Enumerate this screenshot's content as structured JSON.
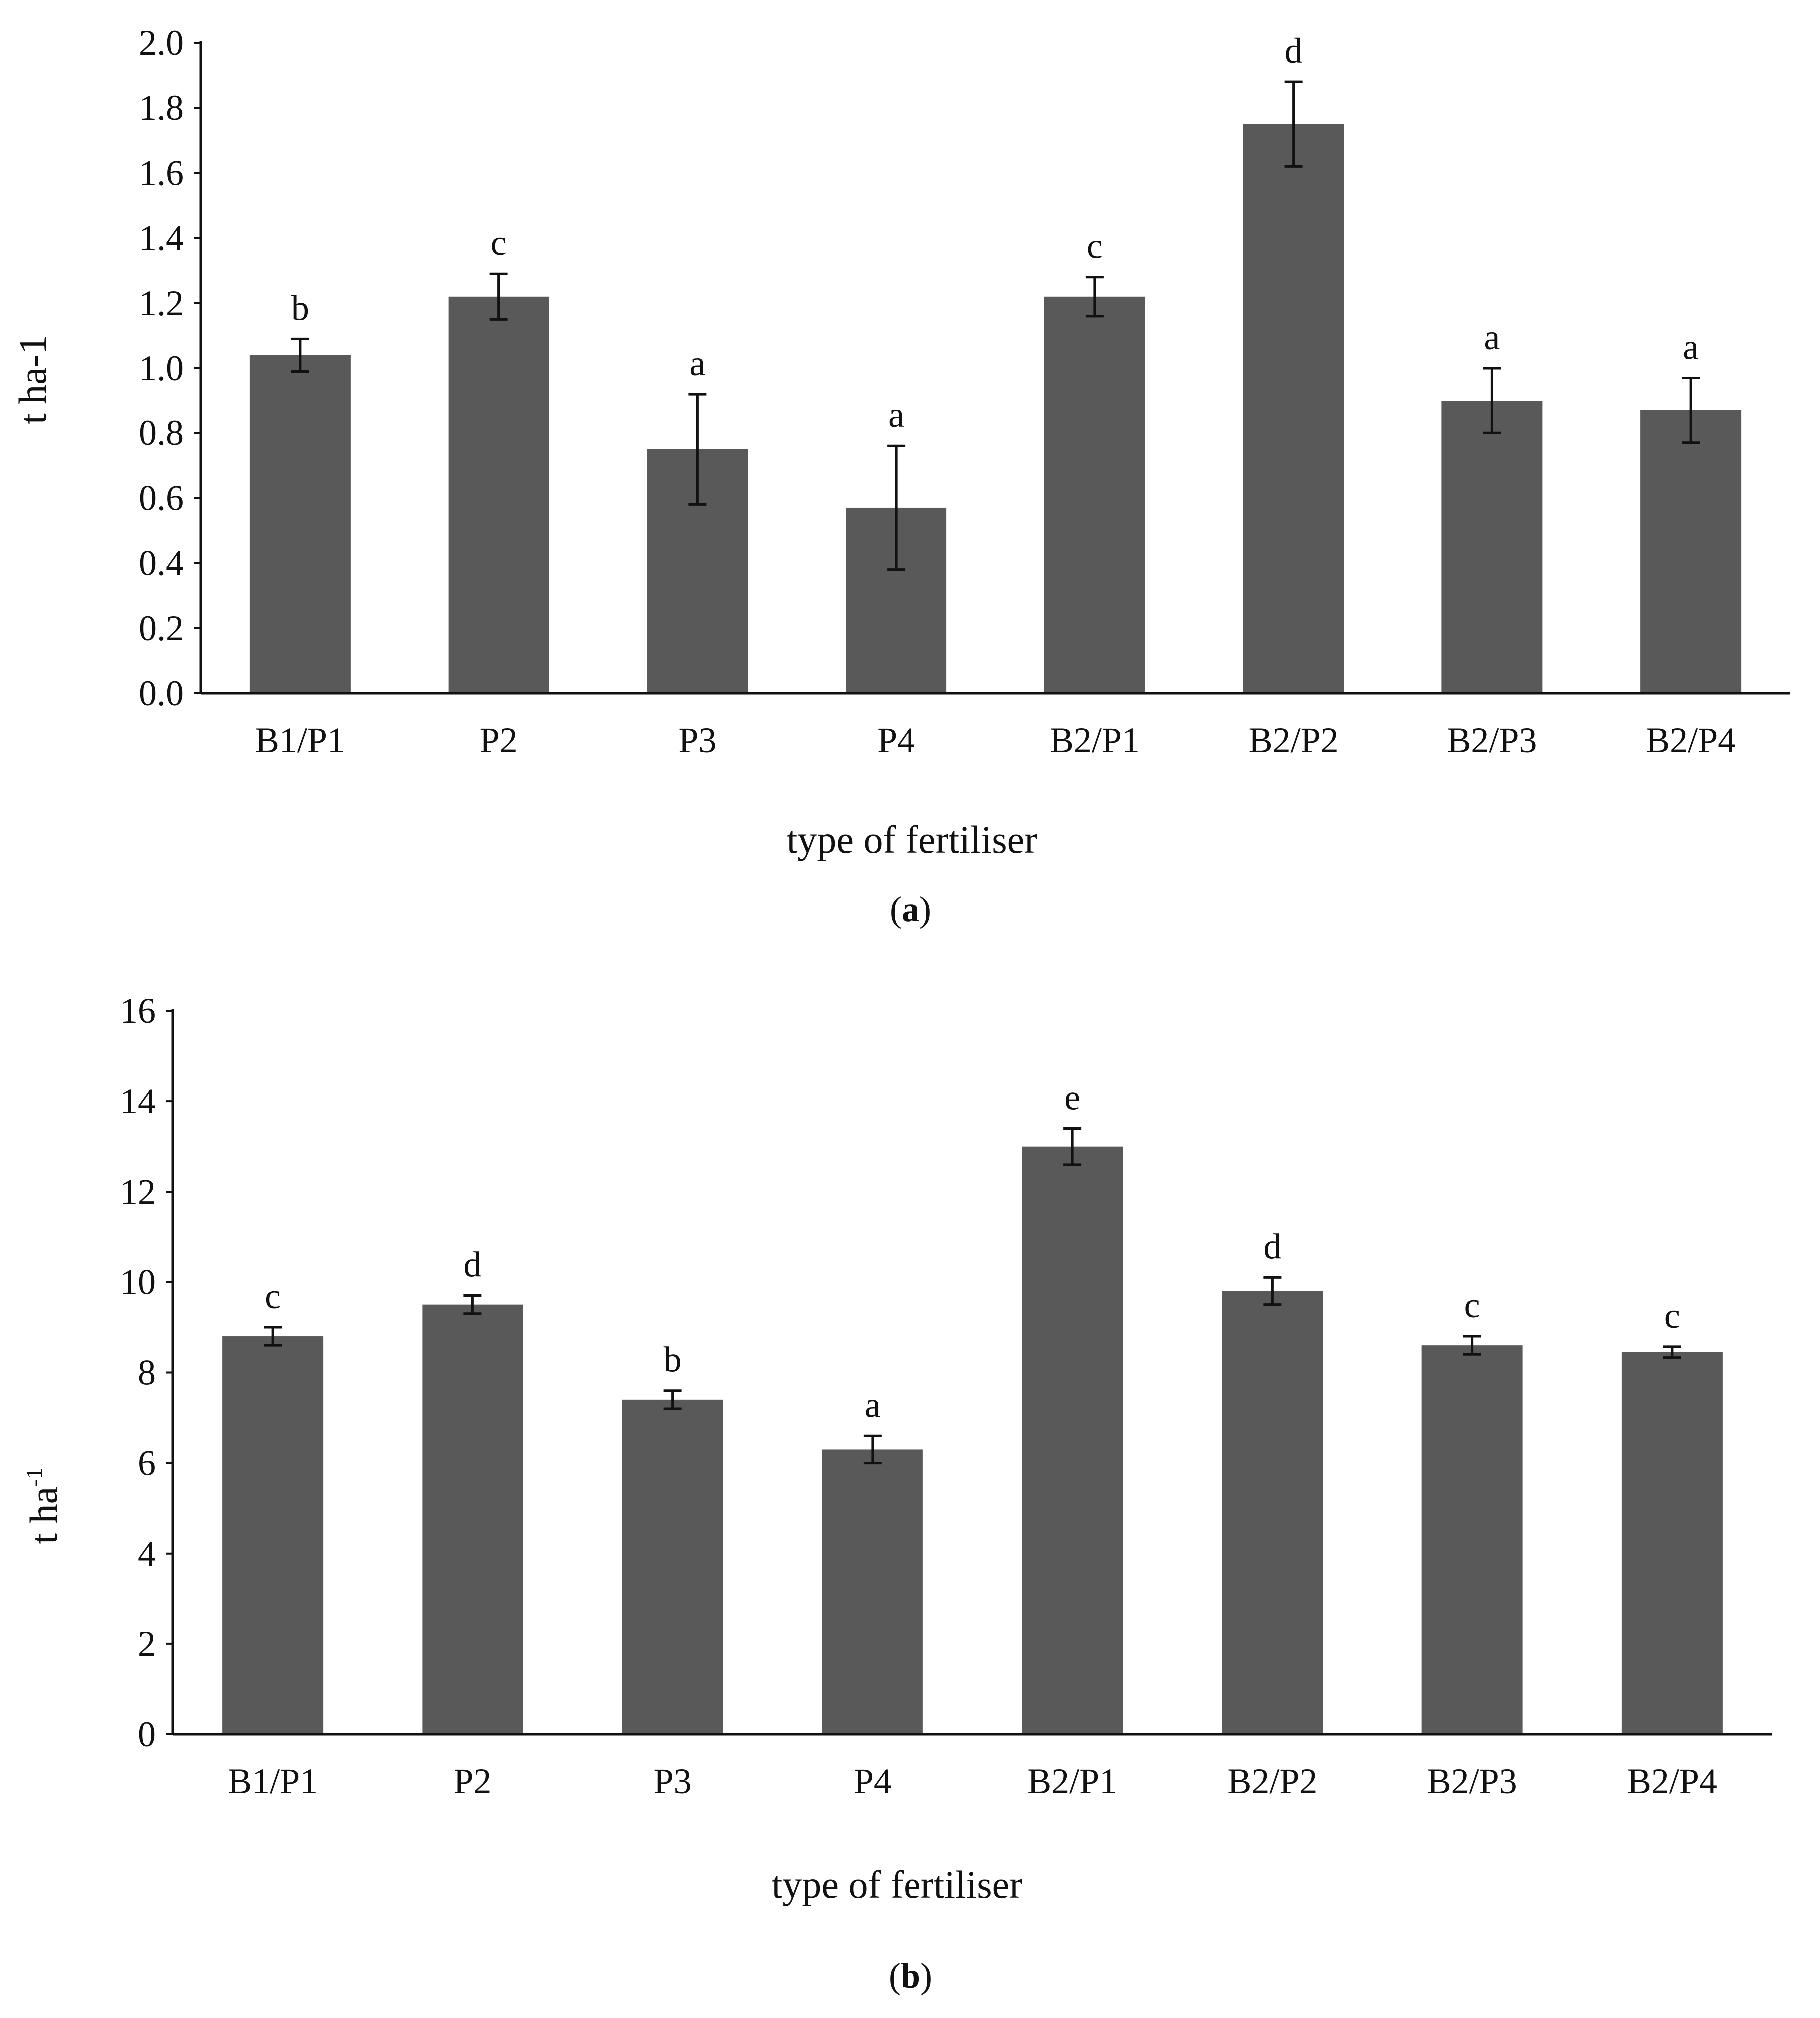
{
  "colors": {
    "bar": "#595959",
    "axis": "#111111",
    "error": "#111111"
  },
  "chart_data": [
    {
      "type": "bar",
      "panel_label": "a",
      "title": "",
      "xlabel": "type of fertiliser",
      "ylabel": "t ha-1",
      "ylabel_base": "t ha-1",
      "ylabel_sup": "",
      "ylim": [
        0,
        2.0
      ],
      "yticks": [
        0.0,
        0.2,
        0.4,
        0.6,
        0.8,
        1.0,
        1.2,
        1.4,
        1.6,
        1.8,
        2.0
      ],
      "ytick_labels": [
        "0.0",
        "0.2",
        "0.4",
        "0.6",
        "0.8",
        "1.0",
        "1.2",
        "1.4",
        "1.6",
        "1.8",
        "2.0"
      ],
      "categories": [
        "B1/P1",
        "P2",
        "P3",
        "P4",
        "B2/P1",
        "B2/P2",
        "B2/P3",
        "B2/P4"
      ],
      "values": [
        1.04,
        1.22,
        0.75,
        0.57,
        1.22,
        1.75,
        0.9,
        0.87
      ],
      "errors": [
        0.05,
        0.07,
        0.17,
        0.19,
        0.06,
        0.13,
        0.1,
        0.1
      ],
      "letters": [
        "b",
        "c",
        "a",
        "a",
        "c",
        "d",
        "a",
        "a"
      ],
      "grid": false
    },
    {
      "type": "bar",
      "panel_label": "b",
      "title": "",
      "xlabel": "type of fertiliser",
      "ylabel": "t ha-1",
      "ylabel_base": "t ha",
      "ylabel_sup": "-1",
      "ylim": [
        0,
        16
      ],
      "yticks": [
        0,
        2,
        4,
        6,
        8,
        10,
        12,
        14,
        16
      ],
      "ytick_labels": [
        "0",
        "2",
        "4",
        "6",
        "8",
        "10",
        "12",
        "14",
        "16"
      ],
      "categories": [
        "B1/P1",
        "P2",
        "P3",
        "P4",
        "B2/P1",
        "B2/P2",
        "B2/P3",
        "B2/P4"
      ],
      "values": [
        8.8,
        9.5,
        7.4,
        6.3,
        13.0,
        9.8,
        8.6,
        8.45
      ],
      "errors": [
        0.2,
        0.2,
        0.2,
        0.3,
        0.4,
        0.3,
        0.2,
        0.12
      ],
      "letters": [
        "c",
        "d",
        "b",
        "a",
        "e",
        "d",
        "c",
        "c"
      ],
      "grid": false
    }
  ]
}
